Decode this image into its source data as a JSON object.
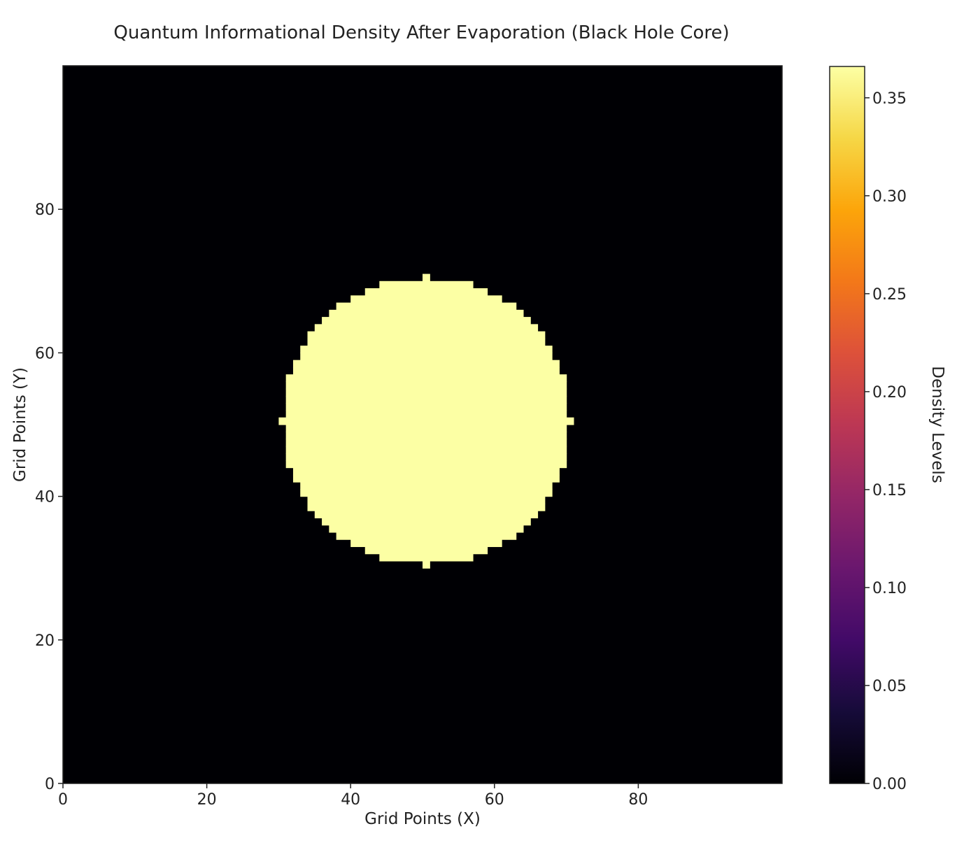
{
  "chart_data": {
    "type": "heatmap",
    "title": "Quantum Informational Density After Evaporation (Black Hole Core)",
    "xlabel": "Grid Points (X)",
    "ylabel": "Grid Points (Y)",
    "colorbar_label": "Density Levels",
    "colormap": "inferno",
    "grid_size": [
      100,
      100
    ],
    "xlim": [
      0,
      100
    ],
    "ylim": [
      0,
      100
    ],
    "x_ticks": [
      0,
      20,
      40,
      60,
      80
    ],
    "y_ticks": [
      0,
      20,
      40,
      60,
      80
    ],
    "x_tick_labels": [
      "0",
      "20",
      "40",
      "60",
      "80"
    ],
    "y_tick_labels": [
      "0",
      "20",
      "40",
      "60",
      "80"
    ],
    "background_value": 0.0,
    "disk": {
      "center": [
        50,
        50
      ],
      "radius": 20,
      "value": 0.366
    },
    "colorbar_range": [
      0.0,
      0.366
    ],
    "colorbar_ticks": [
      0.0,
      0.05,
      0.1,
      0.15,
      0.2,
      0.25,
      0.3,
      0.35
    ],
    "colorbar_tick_labels": [
      "0.00",
      "0.05",
      "0.10",
      "0.15",
      "0.20",
      "0.25",
      "0.30",
      "0.35"
    ],
    "grid": false,
    "colorbar_placement": "right"
  }
}
